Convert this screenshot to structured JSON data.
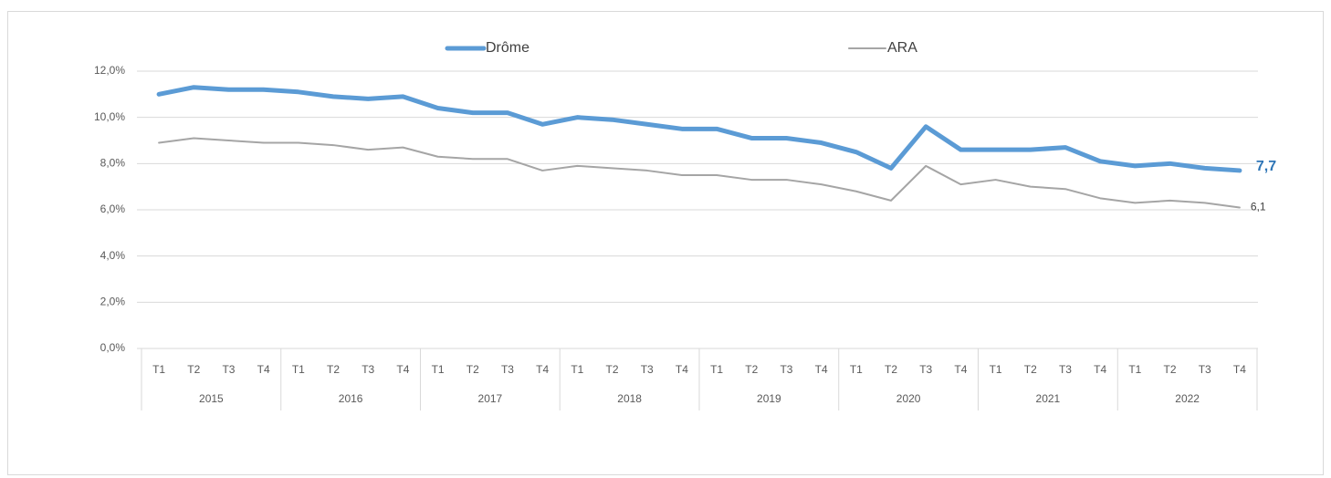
{
  "chart_data": {
    "type": "line",
    "categories": [
      "T1",
      "T2",
      "T3",
      "T4",
      "T1",
      "T2",
      "T3",
      "T4",
      "T1",
      "T2",
      "T3",
      "T4",
      "T1",
      "T2",
      "T3",
      "T4",
      "T1",
      "T2",
      "T3",
      "T4",
      "T1",
      "T2",
      "T3",
      "T4",
      "T1",
      "T2",
      "T3",
      "T4",
      "T1",
      "T2",
      "T3",
      "T4"
    ],
    "years": [
      "2015",
      "2016",
      "2017",
      "2018",
      "2019",
      "2020",
      "2021",
      "2022"
    ],
    "series": [
      {
        "name": "Drôme",
        "color": "#5b9bd5",
        "label_color": "#2e75b6",
        "values": [
          11.0,
          11.3,
          11.2,
          11.2,
          11.1,
          10.9,
          10.8,
          10.9,
          10.4,
          10.2,
          10.2,
          9.7,
          10.0,
          9.9,
          9.7,
          9.5,
          9.5,
          9.1,
          9.1,
          8.9,
          8.5,
          7.8,
          9.6,
          8.6,
          8.6,
          8.6,
          8.7,
          8.1,
          7.9,
          8.0,
          7.8,
          7.7
        ],
        "value_labels": [
          null,
          null,
          null,
          null,
          null,
          null,
          null,
          null,
          null,
          null,
          null,
          null,
          null,
          null,
          null,
          null,
          null,
          null,
          null,
          null,
          null,
          null,
          null,
          null,
          null,
          null,
          null,
          null,
          null,
          null,
          null,
          "7,7"
        ]
      },
      {
        "name": "ARA",
        "color": "#a5a5a5",
        "label_color": "#404040",
        "values": [
          8.9,
          9.1,
          9.0,
          8.9,
          8.9,
          8.8,
          8.6,
          8.7,
          8.3,
          8.2,
          8.2,
          7.7,
          7.9,
          7.8,
          7.7,
          7.5,
          7.5,
          7.3,
          7.3,
          7.1,
          6.8,
          6.4,
          7.9,
          7.1,
          7.3,
          7.0,
          6.9,
          6.5,
          6.3,
          6.4,
          6.3,
          6.1
        ],
        "value_labels": [
          null,
          null,
          null,
          null,
          null,
          null,
          null,
          null,
          null,
          null,
          null,
          null,
          null,
          null,
          null,
          null,
          null,
          null,
          null,
          null,
          null,
          null,
          null,
          null,
          null,
          null,
          null,
          null,
          null,
          null,
          null,
          "6,1"
        ]
      }
    ],
    "ylim": [
      0,
      12
    ],
    "yticks": [
      {
        "value": 0,
        "label": "0,0%"
      },
      {
        "value": 2,
        "label": "2,0%"
      },
      {
        "value": 4,
        "label": "4,0%"
      },
      {
        "value": 6,
        "label": "6,0%"
      },
      {
        "value": 8,
        "label": "8,0%"
      },
      {
        "value": 10,
        "label": "10,0%"
      },
      {
        "value": 12,
        "label": "12,0%"
      }
    ],
    "grid": true,
    "legend": "top"
  }
}
